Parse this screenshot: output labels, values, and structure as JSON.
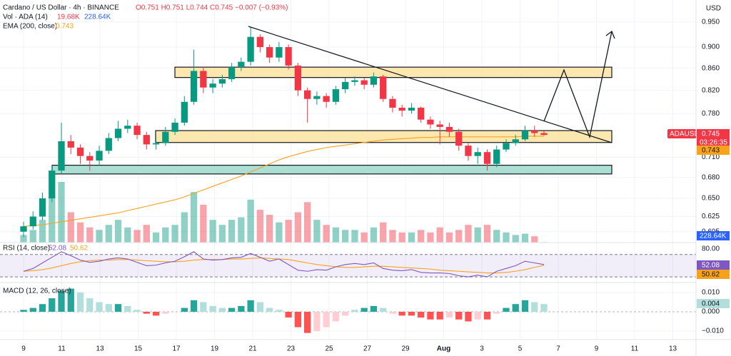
{
  "chart_data": {
    "type": "candlestick",
    "title": "Cardano / US Dollar · 4h · BINANCE",
    "ohlc_text": "O0.751 H0.751 L0.744 C0.745 −0.007 (−0.93%)",
    "currency": "USD",
    "symbol": "ADAUSD",
    "countdown": "03:26:35",
    "x_labels": [
      "9",
      "11",
      "13",
      "15",
      "17",
      "19",
      "21",
      "23",
      "25",
      "27",
      "29",
      "Aug",
      "3",
      "5",
      "7",
      "9",
      "11",
      "13"
    ],
    "log_scale": true,
    "grid": true,
    "ylim": [
      0.591,
      0.996
    ],
    "yticks": [
      {
        "value": 0.95,
        "label": "0.950"
      },
      {
        "value": 0.9,
        "label": "0.900"
      },
      {
        "value": 0.86,
        "label": "0.860"
      },
      {
        "value": 0.82,
        "label": "0.820"
      },
      {
        "value": 0.78,
        "label": "0.780"
      },
      {
        "value": 0.71,
        "label": "0.710"
      },
      {
        "value": 0.68,
        "label": "0.680"
      },
      {
        "value": 0.65,
        "label": "0.650"
      },
      {
        "value": 0.625,
        "label": "0.625"
      },
      {
        "value": 0.605,
        "label": "0.605"
      }
    ],
    "up_color": "#089981",
    "down_color": "#f23645",
    "candles": {
      "open": [
        0.605,
        0.612,
        0.625,
        0.65,
        0.69,
        0.735,
        0.725,
        0.712,
        0.705,
        0.72,
        0.74,
        0.755,
        0.76,
        0.745,
        0.73,
        0.732,
        0.75,
        0.765,
        0.8,
        0.855,
        0.825,
        0.832,
        0.84,
        0.862,
        0.872,
        0.92,
        0.9,
        0.88,
        0.9,
        0.865,
        0.82,
        0.805,
        0.81,
        0.8,
        0.822,
        0.835,
        0.838,
        0.83,
        0.845,
        0.805,
        0.79,
        0.785,
        0.79,
        0.77,
        0.762,
        0.758,
        0.75,
        0.728,
        0.712,
        0.718,
        0.7,
        0.722,
        0.732,
        0.738,
        0.752,
        0.748
      ],
      "high": [
        0.618,
        0.632,
        0.658,
        0.698,
        0.765,
        0.745,
        0.73,
        0.718,
        0.728,
        0.748,
        0.768,
        0.77,
        0.765,
        0.75,
        0.74,
        0.758,
        0.772,
        0.81,
        0.895,
        0.862,
        0.84,
        0.848,
        0.87,
        0.88,
        0.94,
        0.925,
        0.905,
        0.91,
        0.905,
        0.87,
        0.825,
        0.818,
        0.815,
        0.828,
        0.842,
        0.845,
        0.842,
        0.852,
        0.848,
        0.81,
        0.795,
        0.798,
        0.792,
        0.775,
        0.768,
        0.765,
        0.755,
        0.732,
        0.725,
        0.722,
        0.728,
        0.738,
        0.745,
        0.76,
        0.76,
        0.751
      ],
      "low": [
        0.598,
        0.608,
        0.62,
        0.645,
        0.685,
        0.715,
        0.7,
        0.69,
        0.698,
        0.715,
        0.735,
        0.748,
        0.738,
        0.722,
        0.722,
        0.728,
        0.745,
        0.76,
        0.795,
        0.815,
        0.815,
        0.825,
        0.835,
        0.855,
        0.865,
        0.89,
        0.87,
        0.872,
        0.858,
        0.81,
        0.765,
        0.795,
        0.79,
        0.795,
        0.815,
        0.828,
        0.822,
        0.825,
        0.8,
        0.782,
        0.775,
        0.78,
        0.765,
        0.755,
        0.73,
        0.742,
        0.72,
        0.705,
        0.7,
        0.69,
        0.695,
        0.718,
        0.728,
        0.735,
        0.742,
        0.744
      ],
      "close": [
        0.612,
        0.625,
        0.65,
        0.69,
        0.735,
        0.725,
        0.712,
        0.705,
        0.72,
        0.74,
        0.755,
        0.76,
        0.745,
        0.73,
        0.732,
        0.75,
        0.765,
        0.8,
        0.855,
        0.825,
        0.832,
        0.84,
        0.862,
        0.872,
        0.92,
        0.9,
        0.88,
        0.9,
        0.865,
        0.82,
        0.805,
        0.81,
        0.8,
        0.822,
        0.835,
        0.838,
        0.83,
        0.845,
        0.805,
        0.79,
        0.785,
        0.79,
        0.77,
        0.762,
        0.758,
        0.75,
        0.728,
        0.712,
        0.718,
        0.7,
        0.722,
        0.732,
        0.738,
        0.752,
        0.748,
        0.745
      ]
    },
    "volume": {
      "name": "Vol · ADA (14)",
      "last": "19.68K",
      "ma": "228.64K",
      "values": [
        300,
        500,
        900,
        1800,
        2400,
        1200,
        800,
        600,
        500,
        700,
        900,
        600,
        500,
        700,
        400,
        600,
        700,
        1200,
        2000,
        1500,
        900,
        700,
        900,
        1000,
        1700,
        1300,
        1100,
        800,
        900,
        1200,
        1600,
        900,
        700,
        600,
        500,
        500,
        400,
        600,
        800,
        500,
        400,
        400,
        500,
        400,
        600,
        400,
        500,
        700,
        600,
        700,
        500,
        400,
        300,
        350,
        250,
        20
      ]
    },
    "ema": {
      "name": "EMA (200, close)",
      "color": "#f7a21b",
      "values": [
        0.612,
        0.613,
        0.614,
        0.616,
        0.618,
        0.62,
        0.622,
        0.624,
        0.626,
        0.628,
        0.63,
        0.633,
        0.636,
        0.639,
        0.642,
        0.645,
        0.648,
        0.652,
        0.657,
        0.662,
        0.667,
        0.672,
        0.677,
        0.682,
        0.688,
        0.694,
        0.7,
        0.706,
        0.711,
        0.715,
        0.719,
        0.722,
        0.725,
        0.727,
        0.729,
        0.731,
        0.733,
        0.735,
        0.737,
        0.738,
        0.739,
        0.74,
        0.741,
        0.741,
        0.742,
        0.742,
        0.742,
        0.742,
        0.742,
        0.742,
        0.742,
        0.742,
        0.742,
        0.743,
        0.743,
        0.743
      ]
    },
    "zones": [
      {
        "low": 0.843,
        "high": 0.862,
        "color": "#fbe3a0"
      },
      {
        "low": 0.733,
        "high": 0.752,
        "color": "#fbe3a0"
      },
      {
        "low": 0.685,
        "high": 0.698,
        "color": "#9ed9cc"
      }
    ],
    "rsi": {
      "name": "RSI (14, close)",
      "ylim": [
        25,
        85
      ],
      "band": [
        30,
        70
      ],
      "yticks": [
        {
          "value": 80,
          "label": "80.00"
        }
      ],
      "color": "#7e57c2",
      "ma_color": "#f7a21b",
      "values": [
        40,
        45,
        55,
        65,
        75,
        68,
        60,
        56,
        58,
        62,
        64,
        62,
        56,
        50,
        51,
        55,
        58,
        66,
        75,
        62,
        60,
        61,
        64,
        65,
        72,
        65,
        58,
        62,
        52,
        42,
        40,
        43,
        42,
        48,
        52,
        54,
        52,
        55,
        45,
        42,
        41,
        43,
        38,
        37,
        37,
        36,
        32,
        30,
        33,
        30,
        40,
        45,
        50,
        58,
        55,
        52.08
      ],
      "ma": [
        40,
        41,
        43,
        46,
        50,
        54,
        57,
        59,
        60,
        60,
        61,
        61,
        60,
        59,
        58,
        57,
        57,
        58,
        60,
        61,
        61,
        61,
        62,
        62,
        63,
        64,
        63,
        62,
        61,
        58,
        55,
        52,
        50,
        48,
        47,
        47,
        48,
        49,
        49,
        48,
        47,
        46,
        45,
        44,
        42,
        41,
        40,
        39,
        38,
        37,
        37,
        38,
        40,
        43,
        47,
        50.62
      ]
    },
    "macd": {
      "name": "MACD (12, 26, close)",
      "ylim": [
        -0.0137,
        0.0137
      ],
      "yticks": [
        {
          "value": 0.01,
          "label": "0.010"
        },
        {
          "value": 0,
          "label": "0.000"
        },
        {
          "value": -0.01,
          "label": "−0.010"
        }
      ],
      "histogram": [
        0.001,
        0.002,
        0.004,
        0.007,
        0.011,
        0.012,
        0.01,
        0.007,
        0.005,
        0.004,
        0.004,
        0.003,
        0.001,
        -0.001,
        -0.002,
        -0.001,
        0,
        0.002,
        0.006,
        0.005,
        0.003,
        0.002,
        0.002,
        0.003,
        0.006,
        0.005,
        0.002,
        0.001,
        -0.003,
        -0.008,
        -0.011,
        -0.01,
        -0.008,
        -0.005,
        -0.002,
        0.001,
        0.002,
        0.003,
        0.002,
        -0.001,
        -0.002,
        -0.002,
        -0.003,
        -0.004,
        -0.004,
        -0.003,
        -0.004,
        -0.005,
        -0.004,
        -0.004,
        -0.001,
        0.002,
        0.004,
        0.006,
        0.005,
        0.004
      ]
    }
  }
}
